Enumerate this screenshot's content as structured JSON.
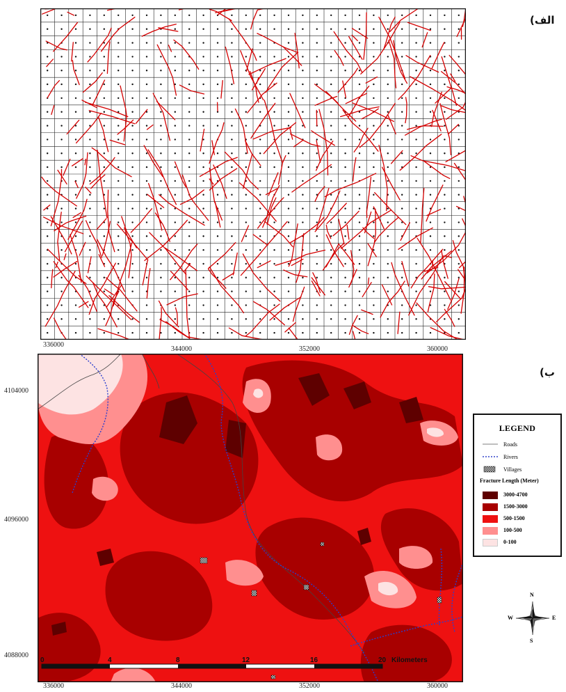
{
  "panels": {
    "top_tag": "الف)",
    "bottom_tag": "ب)"
  },
  "top_axis": {
    "x_ticks": [
      "336000",
      "344000",
      "352000",
      "360000"
    ]
  },
  "bottom_axis": {
    "x_ticks": [
      "336000",
      "344000",
      "352000",
      "360000"
    ],
    "y_ticks": [
      "4104000",
      "4096000",
      "4088000"
    ]
  },
  "scale_bar": {
    "labels": [
      "0",
      "4",
      "8",
      "12",
      "16",
      "20"
    ],
    "unit": "Kilometers"
  },
  "legend": {
    "title": "LEGEND",
    "line_items": [
      {
        "label": "Roads",
        "color": "#555555"
      },
      {
        "label": "Rivers",
        "color": "#3344cc"
      },
      {
        "label": "Villages",
        "color": "#111111"
      }
    ],
    "class_title": "Fracture Length  (Meter)",
    "classes": [
      {
        "label": "3000-4700",
        "color": "#5e0000"
      },
      {
        "label": "1500-3000",
        "color": "#a80000"
      },
      {
        "label": "500-1500",
        "color": "#ee1111"
      },
      {
        "label": "100-500",
        "color": "#ff8f8f"
      },
      {
        "label": "0-100",
        "color": "#fde3e3"
      }
    ]
  },
  "compass": {
    "n": "N",
    "s": "S",
    "e": "E",
    "w": "W"
  },
  "colors": {
    "fracture": "#d40000",
    "grid": "#222222",
    "river": "#2b3fcf",
    "road": "#444444"
  }
}
